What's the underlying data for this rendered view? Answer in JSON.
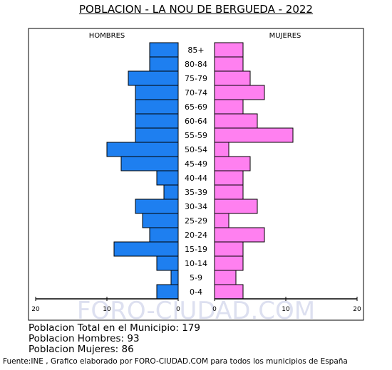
{
  "chart_data": {
    "type": "bar",
    "title": "POBLACION - LA NOU DE BERGUEDA - 2022",
    "left_label": "HOMBRES",
    "right_label": "MUJERES",
    "categories": [
      "85+",
      "80-84",
      "75-79",
      "70-74",
      "65-69",
      "60-64",
      "55-59",
      "50-54",
      "45-49",
      "40-44",
      "35-39",
      "30-34",
      "25-29",
      "20-24",
      "15-19",
      "10-14",
      "5-9",
      "0-4"
    ],
    "series": [
      {
        "name": "HOMBRES",
        "values": [
          4,
          4,
          7,
          6,
          6,
          6,
          6,
          10,
          8,
          3,
          2,
          6,
          5,
          4,
          9,
          3,
          1,
          3
        ]
      },
      {
        "name": "MUJERES",
        "values": [
          4,
          4,
          5,
          7,
          4,
          6,
          11,
          2,
          5,
          4,
          4,
          6,
          2,
          7,
          4,
          4,
          3,
          4
        ]
      }
    ],
    "xlim": [
      0,
      20
    ],
    "x_ticks_left": [
      "20",
      "10",
      "0"
    ],
    "x_ticks_right": [
      "0",
      "10",
      "20"
    ],
    "colors": {
      "hombres": "#1e7ff0",
      "mujeres": "#ff80f0"
    },
    "watermark": "FORO-CIUDAD.COM"
  },
  "stats": {
    "total": "Poblacion Total en el Municipio: 179",
    "hombres": "Poblacion Hombres: 93",
    "mujeres": "Poblacion Mujeres: 86"
  },
  "footer": "Fuente:INE , Grafico elaborado por FORO-CIUDAD.COM para todos los municipios de España"
}
